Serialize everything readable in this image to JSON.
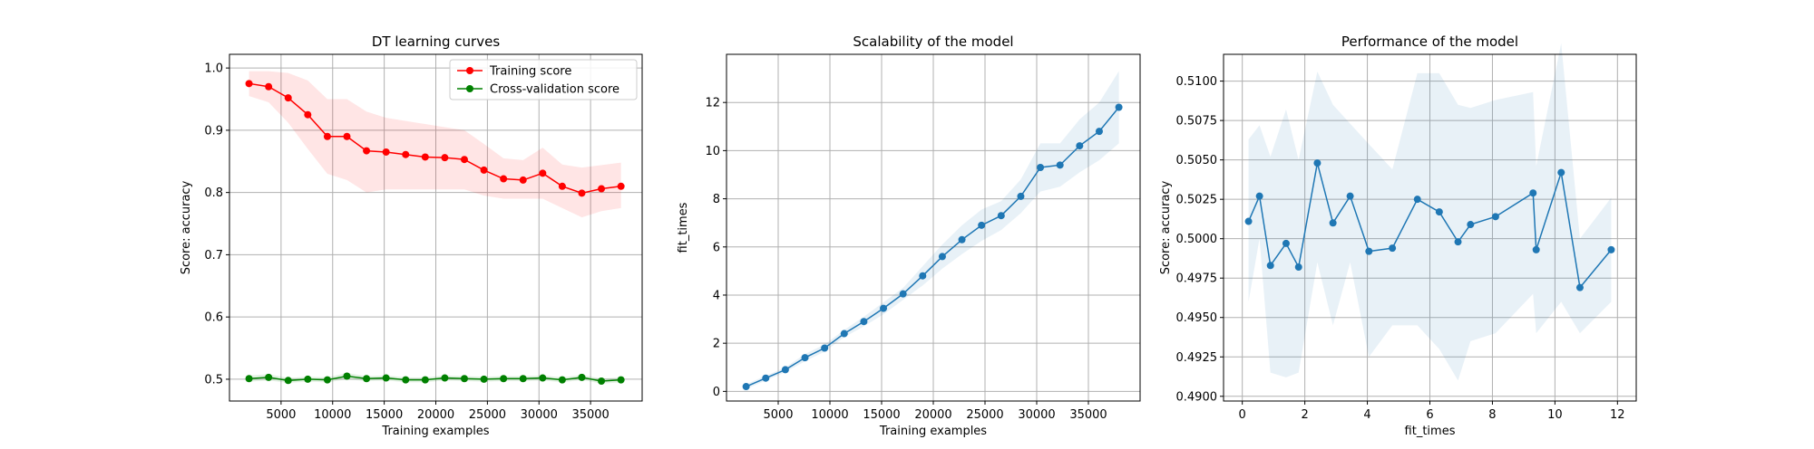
{
  "chart_data": [
    {
      "type": "line",
      "title": "DT learning curves",
      "xlabel": "Training examples",
      "ylabel": "Score: accuracy",
      "xlim": [
        0,
        40000
      ],
      "ylim": [
        0.465,
        1.022
      ],
      "grid": true,
      "legend": "top-right",
      "x": [
        1896,
        3794,
        5691,
        7589,
        9487,
        11384,
        13281,
        15178,
        17076,
        18973,
        20871,
        22768,
        24665,
        26563,
        28460,
        30358,
        32255,
        34152,
        36050,
        37948
      ],
      "series": [
        {
          "name": "Training score",
          "color": "#ff0000",
          "values": [
            0.975,
            0.97,
            0.952,
            0.925,
            0.89,
            0.89,
            0.867,
            0.865,
            0.861,
            0.857,
            0.856,
            0.853,
            0.836,
            0.822,
            0.82,
            0.831,
            0.81,
            0.799,
            0.806,
            0.81
          ],
          "band_lower": [
            0.955,
            0.945,
            0.912,
            0.87,
            0.83,
            0.82,
            0.8,
            0.805,
            0.805,
            0.805,
            0.805,
            0.805,
            0.795,
            0.79,
            0.79,
            0.79,
            0.775,
            0.76,
            0.77,
            0.775
          ],
          "band_upper": [
            0.995,
            0.995,
            0.992,
            0.98,
            0.95,
            0.95,
            0.93,
            0.92,
            0.915,
            0.91,
            0.905,
            0.9,
            0.878,
            0.855,
            0.852,
            0.872,
            0.845,
            0.84,
            0.844,
            0.848
          ]
        },
        {
          "name": "Cross-validation score",
          "color": "#008000",
          "values": [
            0.501,
            0.503,
            0.498,
            0.5,
            0.499,
            0.505,
            0.501,
            0.502,
            0.499,
            0.499,
            0.502,
            0.501,
            0.5,
            0.501,
            0.501,
            0.502,
            0.499,
            0.503,
            0.497,
            0.499
          ],
          "band_lower": [
            0.496,
            0.498,
            0.494,
            0.496,
            0.495,
            0.5,
            0.497,
            0.498,
            0.495,
            0.495,
            0.498,
            0.497,
            0.496,
            0.497,
            0.497,
            0.498,
            0.495,
            0.499,
            0.493,
            0.495
          ],
          "band_upper": [
            0.506,
            0.508,
            0.502,
            0.504,
            0.503,
            0.51,
            0.505,
            0.506,
            0.503,
            0.503,
            0.506,
            0.505,
            0.504,
            0.505,
            0.505,
            0.506,
            0.503,
            0.507,
            0.501,
            0.503
          ]
        }
      ],
      "xticks": [
        5000,
        10000,
        15000,
        20000,
        25000,
        30000,
        35000
      ],
      "yticks": [
        0.5,
        0.6,
        0.7,
        0.8,
        0.9,
        1.0
      ],
      "xtick_labels": [
        "5000",
        "10000",
        "15000",
        "20000",
        "25000",
        "30000",
        "35000"
      ],
      "ytick_labels": [
        "0.5",
        "0.6",
        "0.7",
        "0.8",
        "0.9",
        "1.0"
      ]
    },
    {
      "type": "line",
      "title": "Scalability of the model",
      "xlabel": "Training examples",
      "ylabel": "fit_times",
      "xlim": [
        0,
        40000
      ],
      "ylim": [
        -0.4,
        14.0
      ],
      "grid": true,
      "x": [
        1896,
        3794,
        5691,
        7589,
        9487,
        11384,
        13281,
        15178,
        17076,
        18973,
        20871,
        22768,
        24665,
        26563,
        28460,
        30358,
        32255,
        34152,
        36050,
        37948
      ],
      "series": [
        {
          "color": "#1f77b4",
          "values": [
            0.2,
            0.55,
            0.9,
            1.4,
            1.8,
            2.4,
            2.9,
            3.45,
            4.05,
            4.8,
            5.6,
            6.3,
            6.9,
            7.3,
            8.1,
            9.3,
            9.4,
            10.2,
            10.8,
            11.8
          ],
          "band_lower": [
            0.1,
            0.45,
            0.8,
            1.25,
            1.65,
            2.25,
            2.7,
            3.2,
            3.8,
            4.4,
            5.1,
            5.7,
            6.25,
            6.7,
            7.4,
            8.3,
            8.5,
            9.1,
            9.6,
            10.3
          ],
          "band_upper": [
            0.3,
            0.65,
            1.0,
            1.55,
            1.95,
            2.55,
            3.1,
            3.7,
            4.3,
            5.2,
            6.1,
            6.9,
            7.55,
            7.9,
            8.8,
            10.3,
            10.3,
            11.3,
            12.0,
            13.3
          ]
        }
      ],
      "xticks": [
        5000,
        10000,
        15000,
        20000,
        25000,
        30000,
        35000
      ],
      "yticks": [
        0,
        2,
        4,
        6,
        8,
        10,
        12
      ],
      "xtick_labels": [
        "5000",
        "10000",
        "15000",
        "20000",
        "25000",
        "30000",
        "35000"
      ],
      "ytick_labels": [
        "0",
        "2",
        "4",
        "6",
        "8",
        "10",
        "12"
      ]
    },
    {
      "type": "line",
      "title": "Performance of the model",
      "xlabel": "fit_times",
      "ylabel": "Score: accuracy",
      "xlim": [
        -0.6,
        12.6
      ],
      "ylim": [
        0.4897,
        0.5117
      ],
      "grid": true,
      "x": [
        0.2,
        0.55,
        0.9,
        1.4,
        1.8,
        2.4,
        2.9,
        3.45,
        4.05,
        4.8,
        5.6,
        6.3,
        6.9,
        7.3,
        8.1,
        9.3,
        9.4,
        10.2,
        10.8,
        11.8
      ],
      "series": [
        {
          "color": "#1f77b4",
          "values": [
            0.5011,
            0.5027,
            0.4983,
            0.4997,
            0.4982,
            0.5048,
            0.501,
            0.5027,
            0.4992,
            0.4994,
            0.5025,
            0.5017,
            0.4998,
            0.5009,
            0.5014,
            0.5029,
            0.4993,
            0.5042,
            0.4969,
            0.4993
          ],
          "band_lower": [
            0.496,
            0.5,
            0.4915,
            0.4912,
            0.4915,
            0.4985,
            0.4945,
            0.4985,
            0.4925,
            0.4945,
            0.4945,
            0.493,
            0.491,
            0.4935,
            0.494,
            0.4965,
            0.494,
            0.496,
            0.494,
            0.496
          ],
          "band_upper": [
            0.5063,
            0.5072,
            0.5052,
            0.5082,
            0.505,
            0.5106,
            0.5085,
            0.5073,
            0.506,
            0.5044,
            0.5105,
            0.5105,
            0.5085,
            0.5083,
            0.5088,
            0.5093,
            0.5046,
            0.5124,
            0.5,
            0.5026
          ]
        }
      ],
      "xticks": [
        0,
        2,
        4,
        6,
        8,
        10,
        12
      ],
      "yticks": [
        0.49,
        0.4925,
        0.495,
        0.4975,
        0.5,
        0.5025,
        0.505,
        0.5075,
        0.51
      ],
      "xtick_labels": [
        "0",
        "2",
        "4",
        "6",
        "8",
        "10",
        "12"
      ],
      "ytick_labels": [
        "0.4900",
        "0.4925",
        "0.4950",
        "0.4975",
        "0.5000",
        "0.5025",
        "0.5050",
        "0.5075",
        "0.5100"
      ]
    }
  ]
}
